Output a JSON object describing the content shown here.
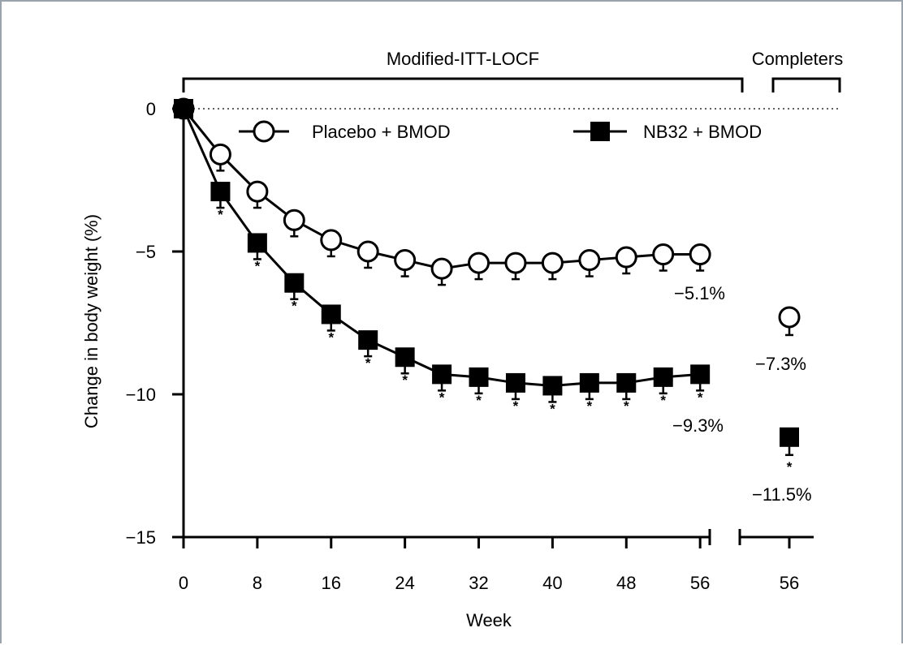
{
  "chart_data": {
    "type": "line",
    "xlabel": "Week",
    "ylabel": "Change in body weight (%)",
    "ylim": [
      -15,
      0
    ],
    "yticks": [
      0,
      -5,
      -10,
      -15
    ],
    "xticks": [
      0,
      8,
      16,
      24,
      32,
      40,
      48,
      56
    ],
    "ytick_labels": [
      "0",
      "−5",
      "−10",
      "−15"
    ],
    "xtick_labels": [
      "0",
      "8",
      "16",
      "24",
      "32",
      "40",
      "48",
      "56"
    ],
    "completers_tick_label": "56",
    "grid": false,
    "legend_placement": "top",
    "section_labels": {
      "itt": "Modified-ITT-LOCF",
      "completers": "Completers"
    },
    "x": [
      0,
      4,
      8,
      12,
      16,
      20,
      24,
      28,
      32,
      36,
      40,
      44,
      48,
      52,
      56
    ],
    "series": [
      {
        "name": "Placebo + BMOD",
        "marker": "open-circle",
        "values": [
          0,
          -1.6,
          -2.9,
          -3.9,
          -4.6,
          -5.0,
          -5.3,
          -5.6,
          -5.4,
          -5.4,
          -5.4,
          -5.3,
          -5.2,
          -5.1,
          -5.1
        ],
        "end_label": "−5.1%",
        "completers_value": -7.3,
        "completers_label": "−7.3%"
      },
      {
        "name": "NB32 + BMOD",
        "marker": "filled-square",
        "values": [
          0,
          -2.9,
          -4.7,
          -6.1,
          -7.2,
          -8.1,
          -8.7,
          -9.3,
          -9.4,
          -9.6,
          -9.7,
          -9.6,
          -9.6,
          -9.4,
          -9.3
        ],
        "end_label": "−9.3%",
        "completers_value": -11.5,
        "completers_label": "−11.5%"
      }
    ],
    "significance_marker": "*"
  },
  "colors": {
    "ink": "#000000",
    "frame": "#9aa3ab",
    "background": "#ffffff"
  }
}
